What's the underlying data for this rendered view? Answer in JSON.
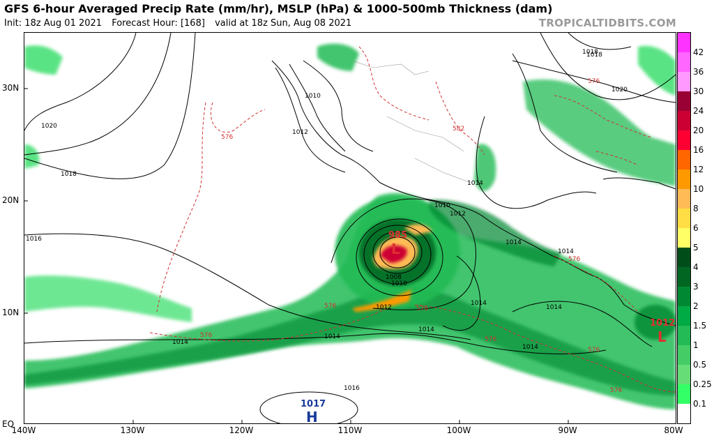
{
  "header": {
    "title": "GFS 6-hour Averaged Precip Rate (mm/hr), MSLP (hPa) & 1000-500mb Thickness (dam)",
    "init": "Init: 18z Aug 01 2021",
    "forecast_hour": "Forecast Hour: [168]",
    "valid": "valid at 18z Sun, Aug 08 2021",
    "watermark": "TROPICALTIDBITS.COM"
  },
  "axes": {
    "lat_labels": [
      "30N",
      "20N",
      "10N",
      "EQ"
    ],
    "lon_labels": [
      "140W",
      "130W",
      "120W",
      "110W",
      "100W",
      "90W",
      "80W"
    ]
  },
  "colorbar": {
    "labels": [
      "42",
      "36",
      "30",
      "24",
      "20",
      "16",
      "12",
      "10",
      "8",
      "6",
      "5",
      "4",
      "3",
      "2",
      "1.5",
      "1",
      "0.5",
      "0.25",
      "0.1"
    ],
    "colors": [
      "#ff33ff",
      "#ff66ff",
      "#ff99ff",
      "#990033",
      "#cc0033",
      "#ff0033",
      "#ff6600",
      "#ff9900",
      "#ffbb55",
      "#ffdd44",
      "#ffff66",
      "#004d1a",
      "#006622",
      "#008833",
      "#00aa44",
      "#22bb55",
      "#44cc66",
      "#66dd77",
      "#33ff66",
      "#ffffff"
    ]
  },
  "pressure_centers": [
    {
      "type": "L",
      "value": "985",
      "color": "#e03030"
    },
    {
      "type": "L",
      "value": "1012",
      "color": "#e03030"
    },
    {
      "type": "H",
      "value": "1017",
      "color": "#1a3a9a"
    }
  ],
  "isobar_labels": [
    "1018",
    "1020",
    "1018",
    "1016",
    "1014",
    "1014",
    "1014",
    "1016",
    "1010",
    "1012",
    "1010",
    "1012",
    "1008",
    "1010",
    "1012",
    "1014",
    "1014",
    "1014",
    "1014",
    "1014",
    "1020",
    "1018",
    "1014"
  ],
  "thickness_labels": [
    "576",
    "576",
    "576",
    "576",
    "576",
    "582",
    "576",
    "576",
    "576",
    "576"
  ],
  "colors": {
    "thickness": "#d03030",
    "isobar": "#000000",
    "land_border": "#000000",
    "state_border": "#999999"
  }
}
